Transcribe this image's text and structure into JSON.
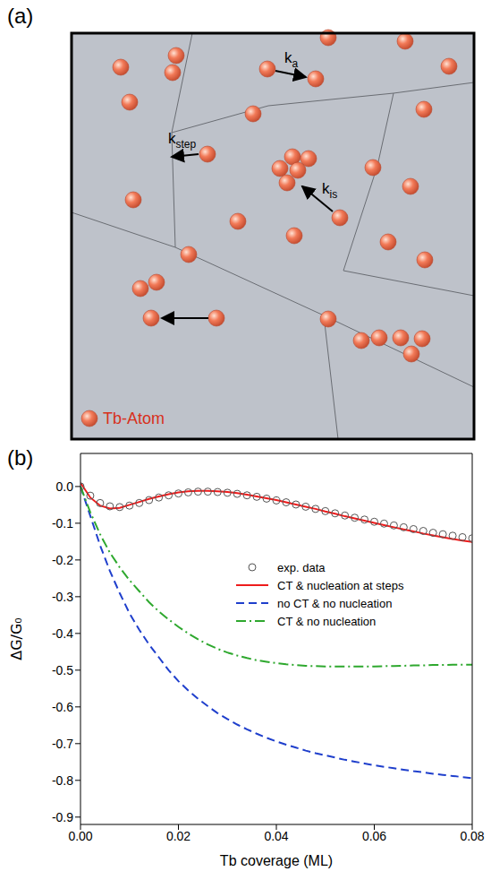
{
  "panel_a": {
    "letter": "(a)",
    "rate_labels": [
      {
        "text": "k",
        "subscript": "a"
      },
      {
        "text": "k",
        "subscript": "step"
      },
      {
        "text": "k",
        "subscript": "is"
      }
    ],
    "atom_label": "Tb-Atom"
  },
  "chart_data": {
    "type": "line",
    "letter": "(b)",
    "xlabel": "Tb coverage (ML)",
    "ylabel": "ΔG/G₀",
    "x": [
      0,
      0.002,
      0.004,
      0.006,
      0.008,
      0.01,
      0.012,
      0.014,
      0.016,
      0.018,
      0.02,
      0.022,
      0.024,
      0.026,
      0.028,
      0.03,
      0.032,
      0.034,
      0.036,
      0.038,
      0.04,
      0.042,
      0.044,
      0.046,
      0.048,
      0.05,
      0.052,
      0.054,
      0.056,
      0.058,
      0.06,
      0.062,
      0.064,
      0.066,
      0.068,
      0.07,
      0.072,
      0.074,
      0.076,
      0.078,
      0.08
    ],
    "xlim": [
      0,
      0.08
    ],
    "ylim": [
      -0.92,
      0.09
    ],
    "xticks": [
      {
        "value": 0,
        "label": "0.00"
      },
      0.02,
      0.04,
      0.06,
      0.08
    ],
    "yticks": [
      {
        "value": 0,
        "label": "0.0"
      },
      -0.1,
      -0.2,
      -0.3,
      -0.4,
      -0.5,
      -0.6,
      -0.7,
      -0.8,
      -0.9
    ],
    "legend": "right",
    "series": [
      {
        "name": "exp. data",
        "color": "#555555",
        "marker": "circle",
        "line_style": "none",
        "values": [
          0,
          -0.025,
          -0.045,
          -0.054,
          -0.056,
          -0.052,
          -0.045,
          -0.037,
          -0.03,
          -0.024,
          -0.019,
          -0.016,
          -0.014,
          -0.014,
          -0.015,
          -0.017,
          -0.02,
          -0.024,
          -0.028,
          -0.033,
          -0.038,
          -0.043,
          -0.049,
          -0.055,
          -0.061,
          -0.067,
          -0.073,
          -0.079,
          -0.085,
          -0.09,
          -0.096,
          -0.101,
          -0.106,
          -0.111,
          -0.116,
          -0.121,
          -0.126,
          -0.13,
          -0.134,
          -0.138,
          -0.141
        ]
      },
      {
        "name": "CT & nucleation at steps",
        "color": "#ee1c1c",
        "line_style": "solid",
        "values": [
          0.01,
          -0.03,
          -0.052,
          -0.06,
          -0.058,
          -0.05,
          -0.042,
          -0.034,
          -0.027,
          -0.021,
          -0.016,
          -0.013,
          -0.012,
          -0.012,
          -0.013,
          -0.015,
          -0.018,
          -0.022,
          -0.027,
          -0.032,
          -0.037,
          -0.043,
          -0.049,
          -0.055,
          -0.061,
          -0.068,
          -0.074,
          -0.081,
          -0.087,
          -0.093,
          -0.099,
          -0.105,
          -0.111,
          -0.117,
          -0.122,
          -0.128,
          -0.133,
          -0.138,
          -0.143,
          -0.147,
          -0.151
        ]
      },
      {
        "name": "no CT & no nucleation",
        "color": "#1f3fcc",
        "line_style": "dashed",
        "values": [
          0,
          -0.08,
          -0.16,
          -0.23,
          -0.29,
          -0.345,
          -0.39,
          -0.43,
          -0.465,
          -0.5,
          -0.53,
          -0.555,
          -0.578,
          -0.598,
          -0.617,
          -0.633,
          -0.648,
          -0.661,
          -0.673,
          -0.684,
          -0.694,
          -0.703,
          -0.711,
          -0.719,
          -0.726,
          -0.732,
          -0.738,
          -0.744,
          -0.749,
          -0.754,
          -0.759,
          -0.763,
          -0.767,
          -0.771,
          -0.775,
          -0.778,
          -0.782,
          -0.785,
          -0.788,
          -0.791,
          -0.794
        ]
      },
      {
        "name": "CT & no nucleation",
        "color": "#2ea82e",
        "line_style": "dashdot",
        "values": [
          0,
          -0.07,
          -0.13,
          -0.18,
          -0.22,
          -0.255,
          -0.285,
          -0.315,
          -0.34,
          -0.362,
          -0.382,
          -0.4,
          -0.416,
          -0.43,
          -0.442,
          -0.452,
          -0.46,
          -0.467,
          -0.473,
          -0.477,
          -0.481,
          -0.484,
          -0.486,
          -0.488,
          -0.489,
          -0.49,
          -0.49,
          -0.49,
          -0.49,
          -0.49,
          -0.49,
          -0.489,
          -0.489,
          -0.488,
          -0.487,
          -0.487,
          -0.486,
          -0.486,
          -0.485,
          -0.485,
          -0.485
        ]
      }
    ]
  }
}
